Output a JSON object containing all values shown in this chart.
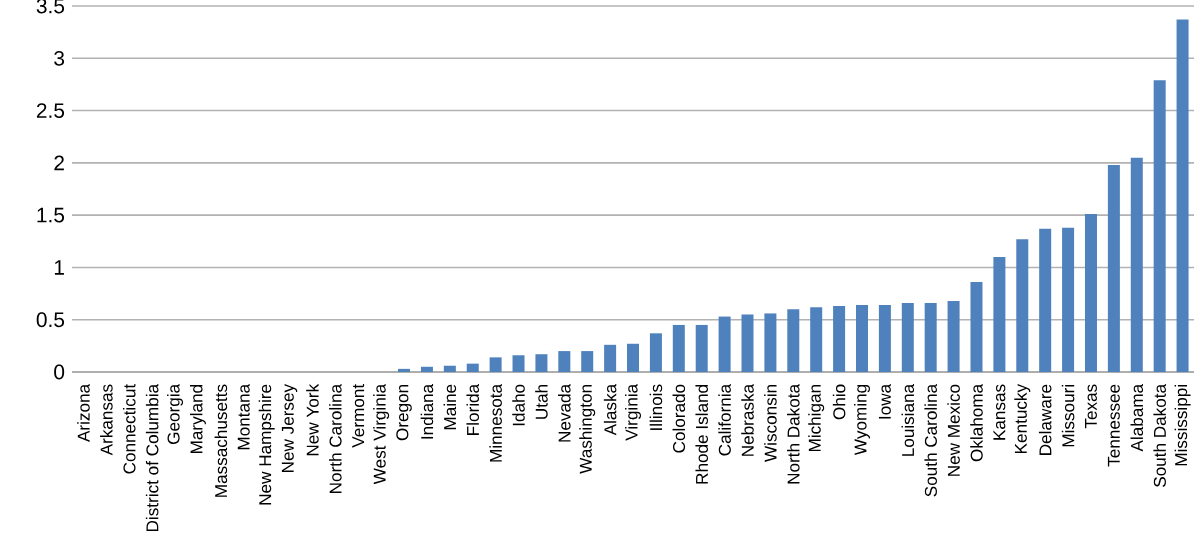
{
  "chart_data": {
    "type": "bar",
    "categories": [
      "Arizona",
      "Arkansas",
      "Connecticut",
      "District of Columbia",
      "Georgia",
      "Maryland",
      "Massachusetts",
      "Montana",
      "New Hampshire",
      "New Jersey",
      "New York",
      "North Carolina",
      "Vermont",
      "West Virginia",
      "Oregon",
      "Indiana",
      "Maine",
      "Florida",
      "Minnesota",
      "Idaho",
      "Utah",
      "Nevada",
      "Washington",
      "Alaska",
      "Virginia",
      "Illinois",
      "Colorado",
      "Rhode Island",
      "California",
      "Nebraska",
      "Wisconsin",
      "North Dakota",
      "Michigan",
      "Ohio",
      "Wyoming",
      "Iowa",
      "Louisiana",
      "South Carolina",
      "New Mexico",
      "Oklahoma",
      "Kansas",
      "Kentucky",
      "Delaware",
      "Missouri",
      "Texas",
      "Tennessee",
      "Alabama",
      "South Dakota",
      "Mississippi"
    ],
    "values": [
      0,
      0,
      0,
      0,
      0,
      0,
      0,
      0,
      0,
      0,
      0,
      0,
      0,
      0,
      0.03,
      0.05,
      0.06,
      0.08,
      0.14,
      0.16,
      0.17,
      0.2,
      0.2,
      0.26,
      0.27,
      0.37,
      0.45,
      0.45,
      0.53,
      0.55,
      0.56,
      0.6,
      0.62,
      0.63,
      0.64,
      0.64,
      0.66,
      0.66,
      0.68,
      0.86,
      1.1,
      1.27,
      1.37,
      1.38,
      1.51,
      1.98,
      2.05,
      2.79,
      3.37
    ],
    "color": "#4f81bd",
    "ylim": [
      0,
      3.5
    ],
    "yticks": [
      0,
      0.5,
      1,
      1.5,
      2,
      2.5,
      3,
      3.5
    ],
    "grid": "y"
  }
}
